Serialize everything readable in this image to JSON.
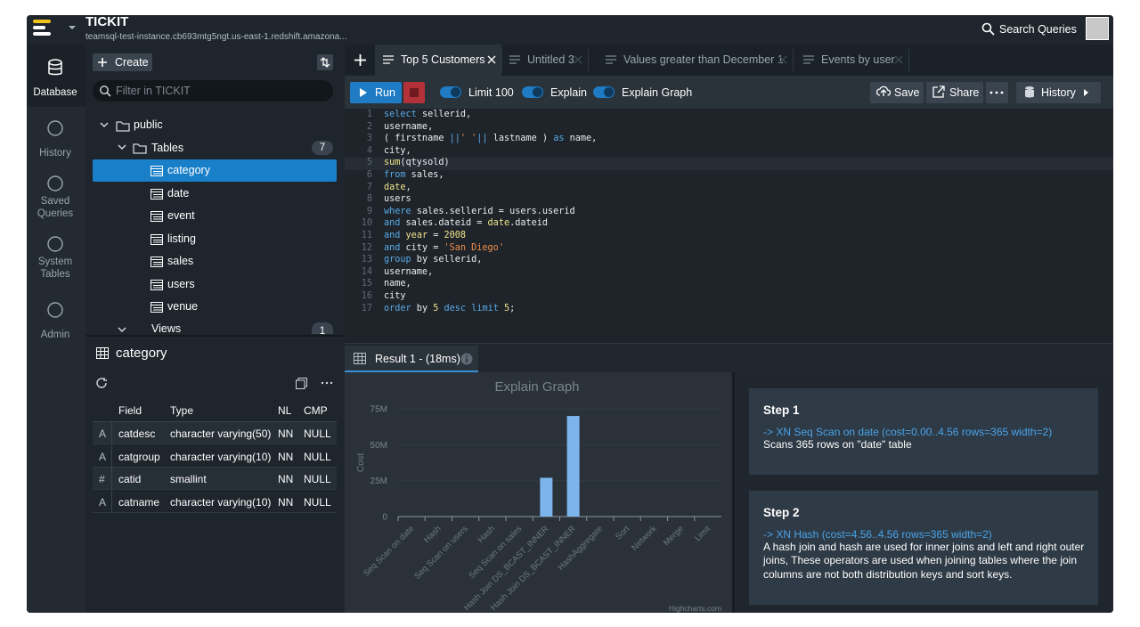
{
  "header": {
    "app_name": "TICKIT",
    "connection": "teamsql-test-instance.cb693mtg5ngt.us-east-1.redshift.amazona...",
    "search": "Search Queries"
  },
  "nav": [
    "Database",
    "History",
    "Saved Queries",
    "System Tables",
    "Admin"
  ],
  "sidebar": {
    "create": "Create",
    "filter_placeholder": "Filter in TICKIT",
    "schema": "public",
    "tables_label": "Tables",
    "tables_count": 7,
    "tables": [
      "category",
      "date",
      "event",
      "listing",
      "sales",
      "users",
      "venue"
    ],
    "views_label": "Views",
    "views_count": 1
  },
  "table_info": {
    "name": "category",
    "columns": [
      "Field",
      "Type",
      "NL",
      "CMP"
    ],
    "rows": [
      [
        "A",
        "catdesc",
        "character varying(50)",
        "NN",
        "NULL"
      ],
      [
        "A",
        "catgroup",
        "character varying(10)",
        "NN",
        "NULL"
      ],
      [
        "#",
        "catid",
        "smallint",
        "NN",
        "NULL"
      ],
      [
        "A",
        "catname",
        "character varying(10)",
        "NN",
        "NULL"
      ]
    ]
  },
  "tabs": [
    "Top 5 Customers",
    "Untitled 3",
    "Values greater than December 1",
    "Events by user"
  ],
  "toolbar": {
    "run": "Run",
    "limit": "Limit 100",
    "explain": "Explain",
    "explain_graph": "Explain Graph",
    "save": "Save",
    "share": "Share",
    "history": "History"
  },
  "editor": {
    "line_numbers": [
      1,
      2,
      3,
      4,
      5,
      6,
      7,
      8,
      9,
      10,
      11,
      12,
      13,
      14,
      15,
      16,
      17
    ],
    "lines": [
      "select   sellerid,",
      "         username,",
      "         ( firstname ||' '|| lastname ) as name,",
      "         city,",
      "         sum(qtysold)",
      "from     sales,",
      "         date,",
      "         users",
      "where    sales.sellerid = users.userid",
      "         and sales.dateid = date.dateid",
      "         and year = 2008",
      "         and city = 'San Diego'",
      "group by sellerid,",
      "         username,",
      "         name,",
      "         city",
      "order by 5 desc limit 5;"
    ]
  },
  "result_tab": "Result 1 - (18ms)",
  "chart_data": {
    "type": "bar",
    "title": "Explain Graph",
    "y_label": "Cost",
    "color": "#7cb5ec",
    "grid": true,
    "credits": "Highcharts.com",
    "categories": [
      "Seq Scan on date",
      "Hash",
      "Seq Scan on users",
      "Hash",
      "Seq Scan on sales",
      "Hash Join DS_BCAST_INNER",
      "Hash Join DS_BCAST_INNER",
      "HashAggregate",
      "Sort",
      "Network",
      "Merge",
      "Limit"
    ],
    "values": [
      0,
      0,
      0,
      0,
      0,
      27000000,
      70000000,
      0,
      0,
      0,
      0,
      0
    ],
    "ylim": [
      0,
      75000000
    ],
    "yticks": [
      0,
      {
        "value": 25000000,
        "label": "25M"
      },
      {
        "value": 50000000,
        "label": "50M"
      },
      {
        "value": 75000000,
        "label": "75M"
      }
    ]
  },
  "steps": [
    {
      "title": "Step 1",
      "detail": "-> XN Seq Scan on date (cost=0.00..4.56 rows=365 width=2)",
      "description": "Scans 365 rows on \"date\" table"
    },
    {
      "title": "Step 2",
      "detail": "-> XN Hash (cost=4.56..4.56 rows=365 width=2)",
      "description": "A hash join and hash are used for inner joins and left and right outer joins, These operators are used when joining tables where the join columns are not both distribution keys and sort keys."
    }
  ]
}
